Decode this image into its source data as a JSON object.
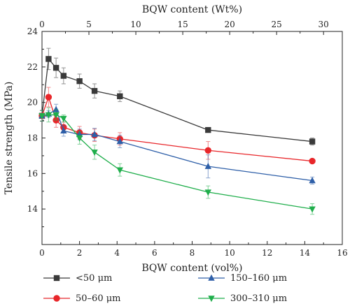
{
  "chart_data": {
    "type": "line",
    "xlabel": "BQW content (vol%)",
    "ylabel": "Tensile strength (MPa)",
    "x2label": "BQW content (Wt%)",
    "xlim": [
      0,
      16
    ],
    "ylim": [
      12,
      24
    ],
    "x2lim": [
      0,
      32
    ],
    "xticks": [
      0,
      2,
      4,
      6,
      8,
      10,
      12,
      14,
      16
    ],
    "yticks": [
      14,
      16,
      18,
      20,
      22,
      24
    ],
    "x2ticks": [
      0,
      5,
      10,
      15,
      20,
      25,
      30
    ],
    "x": [
      0,
      0.35,
      0.75,
      1.15,
      2.0,
      2.8,
      4.15,
      8.85,
      14.4
    ],
    "series": [
      {
        "name": "<50 μm",
        "color": "#3a3a3a",
        "marker": "square",
        "values": [
          19.25,
          22.45,
          21.95,
          21.5,
          21.2,
          20.65,
          20.35,
          18.45,
          17.8
        ],
        "errors": [
          0.3,
          0.6,
          0.55,
          0.45,
          0.4,
          0.4,
          0.3,
          0.1,
          0.2
        ]
      },
      {
        "name": "50–60 μm",
        "color": "#e8262a",
        "marker": "circle",
        "values": [
          19.25,
          20.3,
          19.0,
          18.6,
          18.3,
          18.15,
          17.95,
          17.3,
          16.7
        ],
        "errors": [
          0.3,
          0.55,
          0.4,
          0.3,
          0.35,
          0.35,
          0.35,
          0.5,
          0.1
        ]
      },
      {
        "name": "150–160 μm",
        "color": "#2e5fa8",
        "marker": "triangle-up",
        "values": [
          19.25,
          19.35,
          19.6,
          18.4,
          18.2,
          18.2,
          17.8,
          16.4,
          15.6
        ],
        "errors": [
          0.3,
          0.2,
          0.3,
          0.3,
          0.3,
          0.35,
          0.35,
          0.65,
          0.2
        ]
      },
      {
        "name": "300–310 μm",
        "color": "#1fae4b",
        "marker": "triangle-down",
        "values": [
          19.25,
          19.3,
          19.3,
          19.1,
          18.0,
          17.2,
          16.2,
          14.95,
          14.0
        ],
        "errors": [
          0.3,
          0.4,
          0.3,
          0.2,
          0.35,
          0.4,
          0.35,
          0.35,
          0.3
        ]
      }
    ],
    "legend_position": "bottom"
  }
}
